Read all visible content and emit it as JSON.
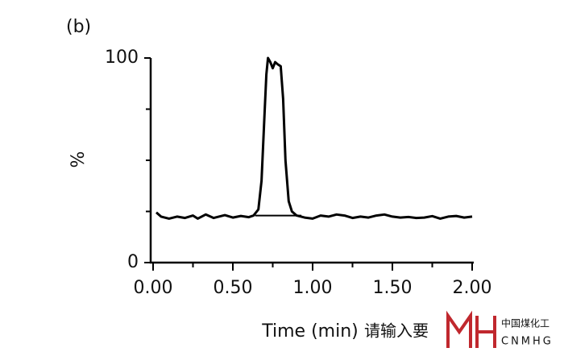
{
  "chart_data": {
    "type": "line",
    "panel_label": "(b)",
    "y_label": "%",
    "x_label": "Time (min)",
    "x": [
      0.02,
      0.05,
      0.1,
      0.15,
      0.2,
      0.25,
      0.28,
      0.33,
      0.38,
      0.45,
      0.5,
      0.55,
      0.6,
      0.63,
      0.66,
      0.68,
      0.7,
      0.71,
      0.72,
      0.735,
      0.75,
      0.765,
      0.78,
      0.8,
      0.815,
      0.83,
      0.85,
      0.87,
      0.9,
      0.95,
      1.0,
      1.05,
      1.1,
      1.15,
      1.2,
      1.25,
      1.3,
      1.35,
      1.4,
      1.45,
      1.5,
      1.55,
      1.6,
      1.65,
      1.7,
      1.75,
      1.8,
      1.85,
      1.9,
      1.95,
      2.0
    ],
    "values": [
      24.5,
      22.5,
      21.5,
      22.5,
      21.8,
      23,
      21.5,
      23.5,
      21.8,
      23.2,
      22,
      22.8,
      22.2,
      23,
      26,
      40,
      75,
      92,
      100,
      98,
      95,
      98,
      97,
      96,
      80,
      50,
      30,
      25,
      23,
      22,
      21.5,
      23,
      22.5,
      23.5,
      23,
      21.8,
      22.5,
      22,
      23,
      23.5,
      22.5,
      22,
      22.3,
      21.8,
      22,
      22.7,
      21.5,
      22.5,
      22.8,
      22,
      22.5
    ],
    "color": "#000000",
    "integration_baseline": {
      "x": [
        0.64,
        0.93
      ],
      "values": [
        23,
        23
      ]
    },
    "xlim": [
      0,
      2
    ],
    "xticks": [
      {
        "value": 0,
        "label": "0.00"
      },
      {
        "value": 0.5,
        "label": "0.50"
      },
      {
        "value": 1,
        "label": "1.00"
      },
      {
        "value": 1.5,
        "label": "1.50"
      },
      {
        "value": 2,
        "label": "2.00"
      }
    ],
    "xminor_ticks": [
      0.25,
      0.75,
      1.25,
      1.75
    ],
    "ylim": [
      0,
      100
    ],
    "yticks": [
      0,
      100
    ],
    "yminor_ticks": [
      25,
      50,
      75
    ],
    "watermark": {
      "text": "请输入要",
      "logo_cn": "中国煤化工",
      "logo_en": "CNMHG"
    }
  }
}
